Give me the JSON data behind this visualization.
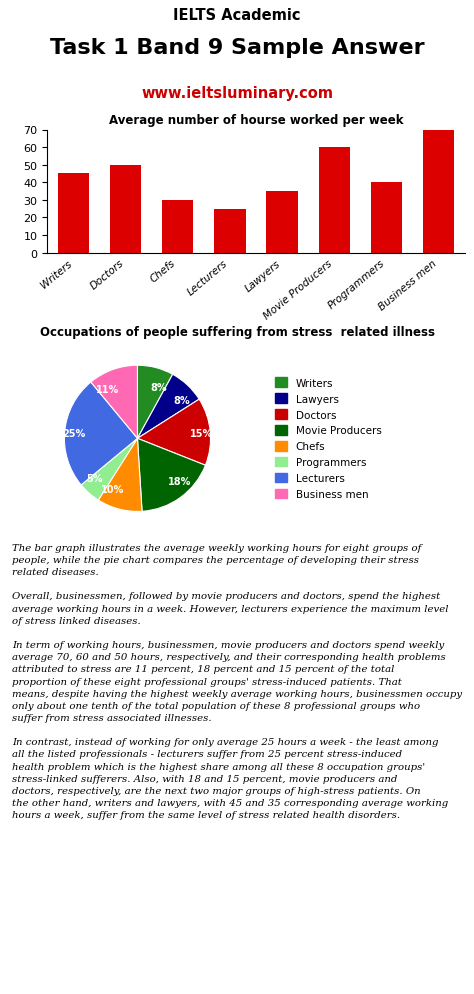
{
  "header_line1": "IELTS Academic",
  "header_line2": "Task 1 Band 9 Sample Answer",
  "header_line3": "www.ieltsluminary.com",
  "header_bg": "#FFFF00",
  "bar_title": "Average number of hourse worked per week",
  "bar_categories": [
    "Writers",
    "Doctors",
    "Chefs",
    "Lecturers",
    "Lawyers",
    "Movie Producers",
    "Programmers",
    "Business men"
  ],
  "bar_values": [
    45,
    50,
    30,
    25,
    35,
    60,
    40,
    70
  ],
  "bar_color": "#DD0000",
  "bar_ylim": [
    0,
    70
  ],
  "bar_yticks": [
    0,
    10,
    20,
    30,
    40,
    50,
    60,
    70
  ],
  "pie_title": "Occupations of people suffering from stress  related illness",
  "pie_labels": [
    "Writers",
    "Lawyers",
    "Doctors",
    "Movie Producers",
    "Chefs",
    "Programmers",
    "Lecturers",
    "Business men"
  ],
  "pie_values": [
    8,
    8,
    15,
    18,
    10,
    5,
    25,
    11
  ],
  "pie_colors": [
    "#228B22",
    "#00008B",
    "#CC0000",
    "#006400",
    "#FF8C00",
    "#90EE90",
    "#4169E1",
    "#FF69B4"
  ],
  "pie_startangle": 90,
  "text_bg": "#CCFFCC",
  "paragraph1": "The bar graph illustrates the average weekly working hours for eight groups of people, while the pie chart compares the percentage of developing their stress related diseases.",
  "paragraph2": "Overall, businessmen, followed by movie producers and doctors, spend the highest average working hours in a week. However, lecturers experience the maximum level of stress linked diseases.",
  "paragraph3": "In term of working hours, businessmen, movie producers and doctors spend weekly average 70, 60 and 50 hours, respectively, and their corresponding health problems attributed to stress are 11 percent, 18 percent and 15 percent of the total proportion of these eight professional groups' stress-induced patients. That means, despite having the highest weekly average working hours, businessmen occupy only about one tenth of the total population of these 8 professional groups who suffer from stress associated illnesses.",
  "paragraph4": "In contrast, instead of working for only average 25 hours a week - the least among all the listed professionals - lecturers suffer from 25 percent stress-induced health problem which is the highest share among all these 8 occupation groups' stress-linked sufferers. Also, with 18 and 15 percent, movie producers and doctors, respectively, are the next two major groups of high-stress patients. On the other hand, writers and lawyers, with 45 and 35 corresponding average working hours a week, suffer from the same level of stress related health disorders."
}
